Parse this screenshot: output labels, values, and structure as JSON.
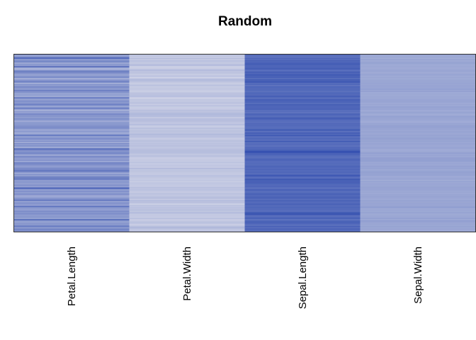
{
  "chart_data": {
    "type": "heatmap",
    "title": "Random",
    "xlabel": "",
    "ylabel": "",
    "columns": [
      "Petal.Length",
      "Petal.Width",
      "Sepal.Length",
      "Sepal.Width"
    ],
    "n_rows": 150,
    "value_range": [
      0,
      1
    ],
    "color_low": "#e6e6ee",
    "color_high": "#1f3ea8",
    "grid": false,
    "legend": "none",
    "values": {
      "Petal.Length": [
        0.53,
        0.36,
        0.6,
        0.75,
        0.43,
        0.52,
        0.58,
        0.34,
        0.47,
        0.42,
        0.7,
        0.44,
        0.23,
        0.47,
        0.61,
        0.56,
        0.46,
        0.39,
        0.47,
        0.55,
        0.33,
        0.42,
        0.53,
        0.61,
        0.29,
        0.48,
        0.43,
        0.55,
        0.5,
        0.41,
        0.63,
        0.51,
        0.48,
        0.36,
        0.46,
        0.31,
        0.6,
        0.52,
        0.38,
        0.54,
        0.45,
        0.5,
        0.62,
        0.45,
        0.37,
        0.66,
        0.42,
        0.31,
        0.45,
        0.39,
        0.57,
        0.48,
        0.48,
        0.43,
        0.52,
        0.47,
        0.34,
        0.44,
        0.46,
        0.46,
        0.5,
        0.54,
        0.52,
        0.4,
        0.39,
        0.46,
        0.33,
        0.43,
        0.65,
        0.43,
        0.46,
        0.55,
        0.4,
        0.5,
        0.34,
        0.52,
        0.41,
        0.53,
        0.3,
        0.61,
        0.66,
        0.5,
        0.49,
        0.59,
        0.45,
        0.37,
        0.58,
        0.46,
        0.41,
        0.51,
        0.35,
        0.56,
        0.56,
        0.51,
        0.42,
        0.47,
        0.54,
        0.56,
        0.68,
        0.51,
        0.35,
        0.5,
        0.4,
        0.58,
        0.61,
        0.63,
        0.44,
        0.46,
        0.46,
        0.4,
        0.54,
        0.39,
        0.62,
        0.75,
        0.35,
        0.54,
        0.42,
        0.48,
        0.51,
        0.35,
        0.39,
        0.46,
        0.56,
        0.62,
        0.38,
        0.52,
        0.45,
        0.42,
        0.69,
        0.47,
        0.44,
        0.41,
        0.54,
        0.47,
        0.53,
        0.46,
        0.44,
        0.49,
        0.37,
        0.71,
        0.53,
        0.37,
        0.48,
        0.43,
        0.55,
        0.62,
        0.41,
        0.59,
        0.55,
        0.5
      ],
      "Petal.Width": [
        0.18,
        0.22,
        0.14,
        0.24,
        0.16,
        0.22,
        0.2,
        0.16,
        0.22,
        0.25,
        0.13,
        0.14,
        0.17,
        0.26,
        0.2,
        0.21,
        0.18,
        0.14,
        0.23,
        0.12,
        0.17,
        0.27,
        0.23,
        0.2,
        0.14,
        0.18,
        0.22,
        0.15,
        0.18,
        0.18,
        0.16,
        0.14,
        0.19,
        0.22,
        0.21,
        0.25,
        0.15,
        0.13,
        0.2,
        0.16,
        0.21,
        0.21,
        0.15,
        0.22,
        0.16,
        0.15,
        0.17,
        0.23,
        0.2,
        0.24,
        0.27,
        0.25,
        0.25,
        0.16,
        0.23,
        0.24,
        0.23,
        0.2,
        0.19,
        0.25,
        0.16,
        0.16,
        0.23,
        0.18,
        0.21,
        0.21,
        0.19,
        0.27,
        0.22,
        0.23,
        0.19,
        0.15,
        0.21,
        0.22,
        0.19,
        0.22,
        0.2,
        0.23,
        0.19,
        0.2,
        0.23,
        0.24,
        0.24,
        0.23,
        0.18,
        0.22,
        0.21,
        0.15,
        0.16,
        0.17,
        0.17,
        0.21,
        0.15,
        0.19,
        0.18,
        0.17,
        0.26,
        0.18,
        0.21,
        0.18,
        0.17,
        0.17,
        0.22,
        0.2,
        0.18,
        0.16,
        0.19,
        0.15,
        0.19,
        0.19,
        0.17,
        0.17,
        0.23,
        0.2,
        0.22,
        0.19,
        0.16,
        0.21,
        0.2,
        0.18,
        0.23,
        0.24,
        0.16,
        0.25,
        0.22,
        0.22,
        0.12,
        0.21,
        0.19,
        0.22,
        0.2,
        0.24,
        0.18,
        0.25,
        0.22,
        0.16,
        0.19,
        0.15,
        0.23,
        0.16,
        0.16,
        0.21,
        0.22,
        0.14,
        0.17,
        0.24,
        0.28,
        0.2,
        0.19,
        0.22
      ],
      "Sepal.Length": [
        0.75,
        0.71,
        0.68,
        0.76,
        0.71,
        0.78,
        0.75,
        0.79,
        0.82,
        0.77,
        0.76,
        0.78,
        0.82,
        0.69,
        0.75,
        0.81,
        0.75,
        0.84,
        0.78,
        0.8,
        0.71,
        0.8,
        0.79,
        0.85,
        0.72,
        0.75,
        0.67,
        0.76,
        0.74,
        0.74,
        0.74,
        0.69,
        0.75,
        0.75,
        0.73,
        0.82,
        0.74,
        0.71,
        0.82,
        0.77,
        0.78,
        0.71,
        0.8,
        0.77,
        0.76,
        0.76,
        0.78,
        0.7,
        0.72,
        0.67,
        0.78,
        0.75,
        0.71,
        0.78,
        0.82,
        0.73,
        0.72,
        0.7,
        0.75,
        0.73,
        0.74,
        0.72,
        0.71,
        0.8,
        0.8,
        0.67,
        0.83,
        0.73,
        0.83,
        0.73,
        0.71,
        0.77,
        0.68,
        0.84,
        0.71,
        0.72,
        0.73,
        0.68,
        0.75,
        0.74,
        0.77,
        0.82,
        0.92,
        0.79,
        0.79,
        0.74,
        0.71,
        0.71,
        0.77,
        0.77,
        0.73,
        0.72,
        0.74,
        0.72,
        0.77,
        0.75,
        0.73,
        0.77,
        0.72,
        0.77,
        0.71,
        0.76,
        0.85,
        0.75,
        0.71,
        0.84,
        0.8,
        0.79,
        0.79,
        0.77,
        0.73,
        0.76,
        0.72,
        0.7,
        0.8,
        0.73,
        0.71,
        0.77,
        0.78,
        0.73,
        0.78,
        0.78,
        0.71,
        0.78,
        0.75,
        0.72,
        0.8,
        0.74,
        0.74,
        0.76,
        0.74,
        0.73,
        0.71,
        0.81,
        0.86,
        0.83,
        0.7,
        0.74,
        0.8,
        0.69,
        0.74,
        0.8,
        0.78,
        0.73,
        0.7,
        0.79,
        0.7,
        0.79,
        0.73,
        0.73
      ],
      "Sepal.Width": [
        0.41,
        0.36,
        0.38,
        0.34,
        0.39,
        0.36,
        0.38,
        0.4,
        0.37,
        0.36,
        0.37,
        0.36,
        0.36,
        0.38,
        0.39,
        0.35,
        0.37,
        0.4,
        0.35,
        0.38,
        0.36,
        0.37,
        0.38,
        0.38,
        0.39,
        0.38,
        0.39,
        0.39,
        0.38,
        0.42,
        0.38,
        0.41,
        0.35,
        0.37,
        0.36,
        0.37,
        0.37,
        0.37,
        0.39,
        0.39,
        0.39,
        0.36,
        0.38,
        0.36,
        0.41,
        0.38,
        0.39,
        0.35,
        0.37,
        0.4,
        0.35,
        0.36,
        0.41,
        0.39,
        0.38,
        0.38,
        0.35,
        0.35,
        0.39,
        0.38,
        0.41,
        0.41,
        0.39,
        0.39,
        0.37,
        0.4,
        0.38,
        0.37,
        0.4,
        0.38,
        0.4,
        0.41,
        0.38,
        0.4,
        0.37,
        0.39,
        0.38,
        0.37,
        0.39,
        0.39,
        0.35,
        0.36,
        0.37,
        0.42,
        0.38,
        0.39,
        0.37,
        0.42,
        0.41,
        0.42,
        0.41,
        0.37,
        0.39,
        0.37,
        0.41,
        0.39,
        0.4,
        0.36,
        0.39,
        0.41,
        0.4,
        0.4,
        0.39,
        0.35,
        0.39,
        0.38,
        0.34,
        0.4,
        0.36,
        0.39,
        0.37,
        0.38,
        0.4,
        0.39,
        0.39,
        0.37,
        0.38,
        0.36,
        0.38,
        0.38,
        0.39,
        0.38,
        0.36,
        0.4,
        0.38,
        0.38,
        0.39,
        0.38,
        0.41,
        0.42,
        0.36,
        0.38,
        0.36,
        0.4,
        0.37,
        0.36,
        0.38,
        0.37,
        0.42,
        0.37,
        0.42,
        0.41,
        0.38,
        0.38,
        0.37,
        0.4,
        0.37,
        0.39,
        0.37,
        0.38
      ]
    }
  }
}
